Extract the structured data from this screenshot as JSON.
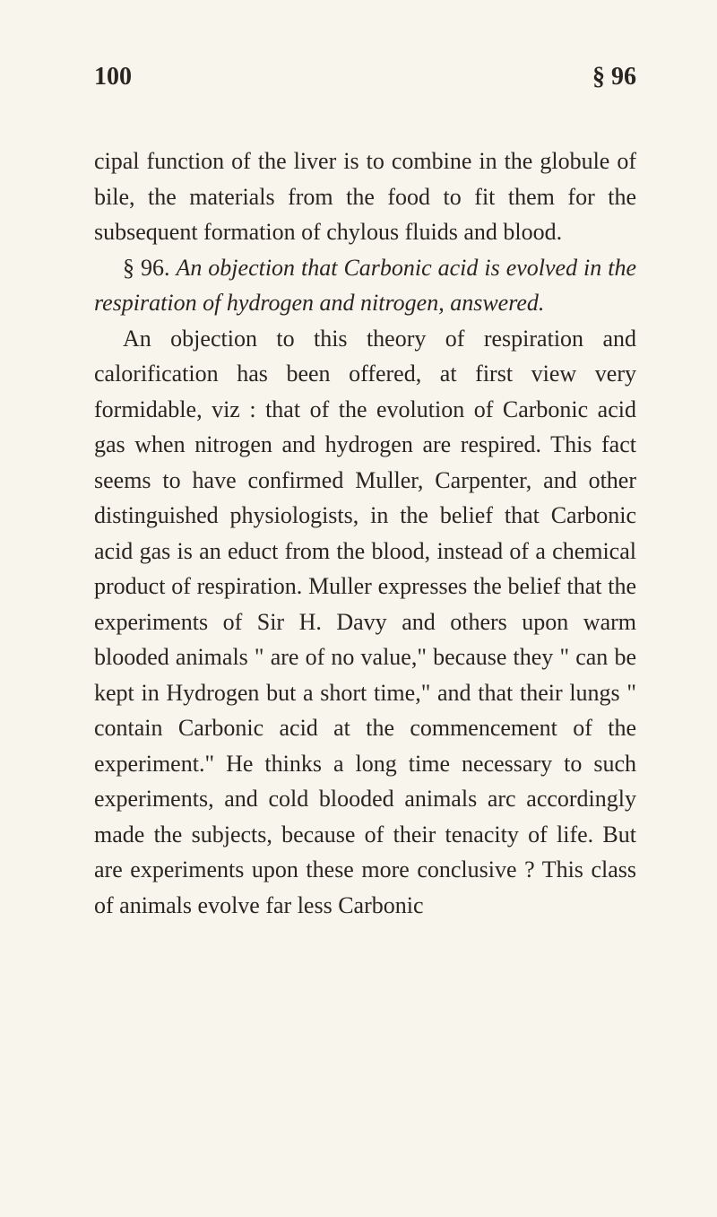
{
  "page": {
    "background_color": "#f8f5ed",
    "text_color": "#2a2520",
    "font_family": "Georgia, 'Times New Roman', serif",
    "body_font_size": 26,
    "header_font_size": 28,
    "line_height": 1.52
  },
  "header": {
    "page_number": "100",
    "section_ref": "§ 96"
  },
  "paragraphs": {
    "p1": "cipal function of the liver is to combine in the globule of bile, the materials from the food to fit them for the subsequent formation of chylous fluids and blood.",
    "p2_prefix": "§ 96.    ",
    "p2_italic": "An objection that Carbonic acid is evolved in the respiration of hydrogen and nitrogen, answered.",
    "p3": "An objection to this theory of respiration and calorification has been offered, at first view very formidable, viz : that of the evolution of Carbonic acid gas when nitrogen and hydrogen are respired. This fact seems to have confirmed Muller, Carpenter, and other distinguished physiologists, in the belief that Carbonic acid gas is an educt from the blood, instead of a chemical product of respiration. Muller expresses the belief that the experiments of Sir H. Davy and others upon warm blooded animals \" are of no value,\" because they \" can be kept in Hydrogen but a short time,\" and that their lungs \" contain Carbonic acid at the commencement of the experiment.\" He thinks a long time necessary to such experiments, and cold blooded animals arc accordingly made the subjects, because of their tenacity of life. But are experiments upon these more conclusive ? This class of animals evolve far less Carbonic"
  }
}
